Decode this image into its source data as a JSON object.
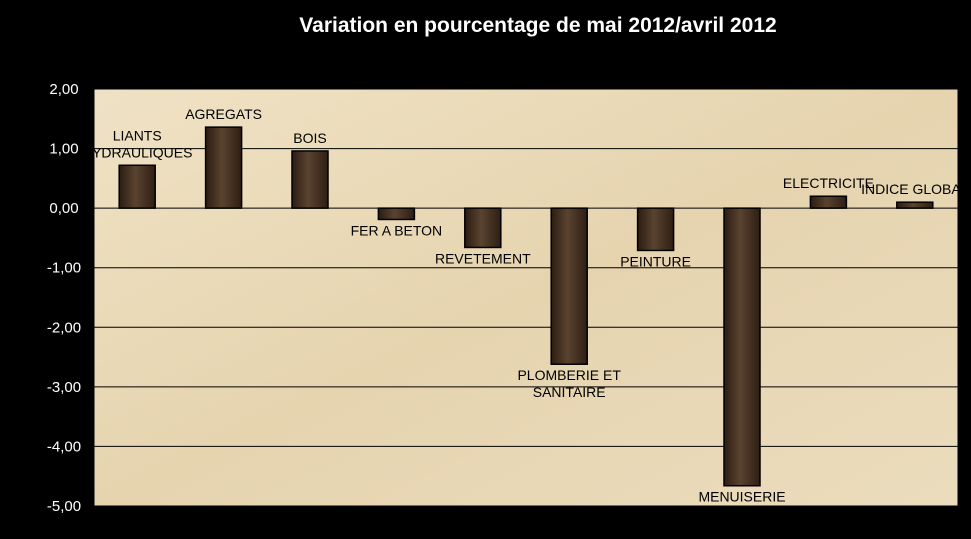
{
  "chart_data": {
    "type": "bar",
    "title": "Variation  en pourcentage de mai 2012/avril 2012",
    "xlabel": "",
    "ylabel": "",
    "ylim": [
      -5,
      2
    ],
    "yticks": [
      2,
      1,
      0,
      -1,
      -2,
      -3,
      -4,
      -5
    ],
    "ytick_labels": [
      "2,00",
      "1,00",
      "0,00",
      "-1,00",
      "-2,00",
      "-3,00",
      "-4,00",
      "-5,00"
    ],
    "grid": true,
    "categories": [
      [
        "LIANTS",
        "HYDRAULIQUES"
      ],
      [
        "AGREGATS"
      ],
      [
        "BOIS"
      ],
      [
        "FER A BETON"
      ],
      [
        "REVETEMENT"
      ],
      [
        "PLOMBERIE ET",
        "SANITAIRE"
      ],
      [
        "PEINTURE"
      ],
      [
        "MENUISERIE"
      ],
      [
        "ELECTRICITE"
      ],
      [
        "INDICE GLOBAL"
      ]
    ],
    "values": [
      0.72,
      1.36,
      0.96,
      -0.19,
      -0.66,
      -2.62,
      -0.71,
      -4.66,
      0.2,
      0.1
    ],
    "colors": {
      "bar": "#3e2a1c",
      "plot_background": "#e9d9b8",
      "frame": "#000000",
      "gridline": "#000000"
    }
  }
}
